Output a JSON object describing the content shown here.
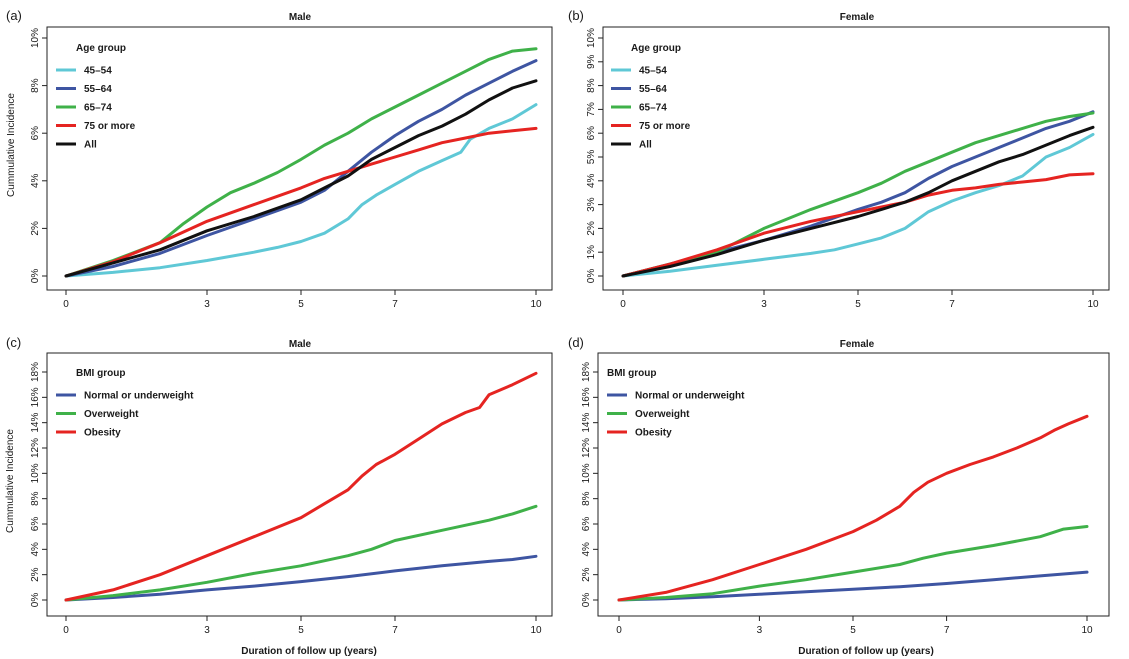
{
  "figure": {
    "xlabel": "Duration of follow up (years)"
  },
  "chart_data": [
    {
      "type": "line",
      "panel": "(a)",
      "title": "Male",
      "ylabel": "Cummulative Incidence",
      "xlabel": "",
      "xlim": [
        0,
        10
      ],
      "ylim": [
        0,
        10
      ],
      "xticks": [
        0,
        3,
        5,
        7,
        10
      ],
      "yticks": [
        0,
        2,
        4,
        6,
        8,
        10
      ],
      "ytick_labels": [
        "0%",
        "2%",
        "4%",
        "6%",
        "8%",
        "10%"
      ],
      "legend_title": "Age group",
      "legend_position": "top-left",
      "grid": false,
      "series": [
        {
          "name": "45–54",
          "color": "#5fc8d6",
          "x": [
            0,
            1,
            2,
            3,
            4,
            4.5,
            5,
            5.5,
            6,
            6.3,
            6.6,
            7,
            7.5,
            8,
            8.4,
            8.6,
            9,
            9.5,
            10
          ],
          "y": [
            0,
            0.15,
            0.35,
            0.65,
            1.0,
            1.2,
            1.45,
            1.8,
            2.4,
            3.0,
            3.4,
            3.85,
            4.4,
            4.85,
            5.2,
            5.75,
            6.2,
            6.6,
            7.2
          ]
        },
        {
          "name": "55–64",
          "color": "#3e55a2",
          "x": [
            0,
            1,
            2,
            3,
            4,
            5,
            5.5,
            6,
            6.5,
            7,
            7.5,
            8,
            8.5,
            9,
            9.5,
            10
          ],
          "y": [
            0,
            0.4,
            0.95,
            1.7,
            2.4,
            3.1,
            3.6,
            4.4,
            5.2,
            5.9,
            6.5,
            7.0,
            7.6,
            8.1,
            8.6,
            9.05
          ]
        },
        {
          "name": "65–74",
          "color": "#3fb149",
          "x": [
            0,
            1,
            2,
            2.5,
            3,
            3.5,
            4,
            4.5,
            5,
            5.5,
            6,
            6.5,
            7,
            7.5,
            8,
            8.5,
            9,
            9.5,
            10
          ],
          "y": [
            0,
            0.65,
            1.4,
            2.2,
            2.9,
            3.5,
            3.9,
            4.35,
            4.9,
            5.5,
            6.0,
            6.6,
            7.1,
            7.6,
            8.1,
            8.6,
            9.1,
            9.45,
            9.55
          ]
        },
        {
          "name": "75 or more",
          "color": "#e52421",
          "x": [
            0,
            1,
            2,
            3,
            4,
            5,
            5.5,
            6,
            6.5,
            7,
            7.5,
            8,
            8.5,
            9,
            9.5,
            10
          ],
          "y": [
            0,
            0.6,
            1.4,
            2.3,
            3.0,
            3.7,
            4.1,
            4.4,
            4.7,
            5.0,
            5.3,
            5.6,
            5.8,
            6.0,
            6.1,
            6.2
          ]
        },
        {
          "name": "All",
          "color": "#111111",
          "x": [
            0,
            1,
            2,
            3,
            4,
            5,
            5.5,
            6,
            6.5,
            7,
            7.5,
            8,
            8.5,
            9,
            9.5,
            10
          ],
          "y": [
            0,
            0.55,
            1.1,
            1.9,
            2.5,
            3.2,
            3.7,
            4.2,
            4.9,
            5.4,
            5.9,
            6.3,
            6.8,
            7.4,
            7.9,
            8.2
          ]
        }
      ]
    },
    {
      "type": "line",
      "panel": "(b)",
      "title": "Female",
      "ylabel": "",
      "xlabel": "",
      "xlim": [
        0,
        10
      ],
      "ylim": [
        0,
        10
      ],
      "xticks": [
        0,
        3,
        5,
        7,
        10
      ],
      "yticks": [
        0,
        1,
        2,
        3,
        4,
        5,
        6,
        7,
        8,
        9,
        10
      ],
      "ytick_labels": [
        "0%",
        "1%",
        "2%",
        "3%",
        "4%",
        "5%",
        "6%",
        "7%",
        "8%",
        "9%",
        "10%"
      ],
      "legend_title": "Age group",
      "legend_position": "top-left",
      "grid": false,
      "series": [
        {
          "name": "45–54",
          "color": "#5fc8d6",
          "x": [
            0,
            1,
            2,
            3,
            4,
            4.5,
            5,
            5.5,
            6,
            6.5,
            7,
            7.5,
            8,
            8.5,
            9,
            9.5,
            10
          ],
          "y": [
            0,
            0.2,
            0.45,
            0.7,
            0.95,
            1.1,
            1.35,
            1.6,
            2.0,
            2.7,
            3.15,
            3.5,
            3.8,
            4.2,
            5.0,
            5.4,
            5.95
          ]
        },
        {
          "name": "55–64",
          "color": "#3e55a2",
          "x": [
            0,
            1,
            2,
            3,
            4,
            5,
            5.5,
            6,
            6.5,
            7,
            7.5,
            8,
            8.5,
            9,
            9.5,
            10
          ],
          "y": [
            0,
            0.5,
            1.0,
            1.5,
            2.1,
            2.8,
            3.1,
            3.5,
            4.1,
            4.6,
            5.0,
            5.4,
            5.8,
            6.2,
            6.5,
            6.9
          ]
        },
        {
          "name": "65–74",
          "color": "#3fb149",
          "x": [
            0,
            1,
            2,
            3,
            4,
            5,
            5.5,
            6,
            6.5,
            7,
            7.5,
            8,
            8.5,
            9,
            9.5,
            10
          ],
          "y": [
            0,
            0.5,
            1.0,
            2.0,
            2.8,
            3.5,
            3.9,
            4.4,
            4.8,
            5.2,
            5.6,
            5.9,
            6.2,
            6.5,
            6.7,
            6.85
          ]
        },
        {
          "name": "75 or more",
          "color": "#e52421",
          "x": [
            0,
            1,
            2,
            3,
            4,
            5,
            5.5,
            6,
            6.5,
            7,
            7.5,
            8,
            8.5,
            9,
            9.5,
            10
          ],
          "y": [
            0,
            0.5,
            1.1,
            1.8,
            2.3,
            2.7,
            2.9,
            3.1,
            3.4,
            3.6,
            3.7,
            3.85,
            3.95,
            4.05,
            4.25,
            4.3
          ]
        },
        {
          "name": "All",
          "color": "#111111",
          "x": [
            0,
            1,
            2,
            3,
            4,
            5,
            5.5,
            6,
            6.5,
            7,
            7.5,
            8,
            8.5,
            9,
            9.5,
            10
          ],
          "y": [
            0,
            0.4,
            0.9,
            1.5,
            2.0,
            2.5,
            2.8,
            3.1,
            3.5,
            4.0,
            4.4,
            4.8,
            5.1,
            5.5,
            5.9,
            6.25
          ]
        }
      ]
    },
    {
      "type": "line",
      "panel": "(c)",
      "title": "Male",
      "ylabel": "Cummulative Incidence",
      "xlabel": "",
      "xlim": [
        0,
        10
      ],
      "ylim": [
        0,
        18
      ],
      "xticks": [
        0,
        3,
        5,
        7,
        10
      ],
      "yticks": [
        0,
        2,
        4,
        6,
        8,
        10,
        12,
        14,
        16,
        18
      ],
      "ytick_labels": [
        "0%",
        "2%",
        "4%",
        "6%",
        "8%",
        "10%",
        "12%",
        "14%",
        "16%",
        "18%"
      ],
      "legend_title": "BMI group",
      "legend_position": "top-left",
      "grid": false,
      "series": [
        {
          "name": "Normal or underweight",
          "color": "#3e55a2",
          "x": [
            0,
            1,
            2,
            3,
            4,
            5,
            6,
            7,
            8,
            9,
            9.5,
            10
          ],
          "y": [
            0,
            0.2,
            0.45,
            0.8,
            1.1,
            1.45,
            1.85,
            2.3,
            2.7,
            3.05,
            3.2,
            3.45
          ]
        },
        {
          "name": "Overweight",
          "color": "#3fb149",
          "x": [
            0,
            1,
            2,
            3,
            4,
            5,
            6,
            6.5,
            7,
            8,
            9,
            9.5,
            10
          ],
          "y": [
            0,
            0.35,
            0.8,
            1.4,
            2.1,
            2.7,
            3.5,
            4.0,
            4.7,
            5.5,
            6.3,
            6.8,
            7.4
          ]
        },
        {
          "name": "Obesity",
          "color": "#e52421",
          "x": [
            0,
            1,
            2,
            3,
            4,
            5,
            5.5,
            6,
            6.3,
            6.6,
            7,
            7.5,
            8,
            8.5,
            8.8,
            9,
            9.5,
            10
          ],
          "y": [
            0,
            0.8,
            2.0,
            3.5,
            5.0,
            6.5,
            7.6,
            8.7,
            9.8,
            10.7,
            11.5,
            12.7,
            13.9,
            14.8,
            15.2,
            16.2,
            17.0,
            17.9
          ]
        }
      ]
    },
    {
      "type": "line",
      "panel": "(d)",
      "title": "Female",
      "ylabel": "",
      "xlabel": "",
      "xlim": [
        0,
        10
      ],
      "ylim": [
        0,
        18
      ],
      "xticks": [
        0,
        3,
        5,
        7,
        10
      ],
      "yticks": [
        0,
        2,
        4,
        6,
        8,
        10,
        12,
        14,
        16,
        18
      ],
      "ytick_labels": [
        "0%",
        "2%",
        "4%",
        "6%",
        "8%",
        "10%",
        "12%",
        "14%",
        "16%",
        "18%"
      ],
      "legend_title": "BMI group",
      "legend_position": "top-left",
      "grid": false,
      "series": [
        {
          "name": "Normal or underweight",
          "color": "#3e55a2",
          "x": [
            0,
            1,
            2,
            3,
            4,
            5,
            6,
            7,
            8,
            9,
            9.5,
            10
          ],
          "y": [
            0,
            0.1,
            0.25,
            0.45,
            0.65,
            0.85,
            1.05,
            1.3,
            1.6,
            1.9,
            2.05,
            2.2
          ]
        },
        {
          "name": "Overweight",
          "color": "#3fb149",
          "x": [
            0,
            1,
            2,
            3,
            4,
            5,
            6,
            6.5,
            7,
            8,
            9,
            9.5,
            10
          ],
          "y": [
            0,
            0.2,
            0.5,
            1.1,
            1.6,
            2.2,
            2.8,
            3.3,
            3.7,
            4.3,
            5.0,
            5.6,
            5.8
          ]
        },
        {
          "name": "Obesity",
          "color": "#e52421",
          "x": [
            0,
            1,
            2,
            3,
            4,
            5,
            5.5,
            6,
            6.3,
            6.6,
            7,
            7.5,
            8,
            8.5,
            9,
            9.3,
            9.6,
            10
          ],
          "y": [
            0,
            0.6,
            1.6,
            2.8,
            4.0,
            5.4,
            6.3,
            7.4,
            8.5,
            9.3,
            10.0,
            10.7,
            11.3,
            12.0,
            12.8,
            13.4,
            13.9,
            14.5
          ]
        }
      ]
    }
  ]
}
